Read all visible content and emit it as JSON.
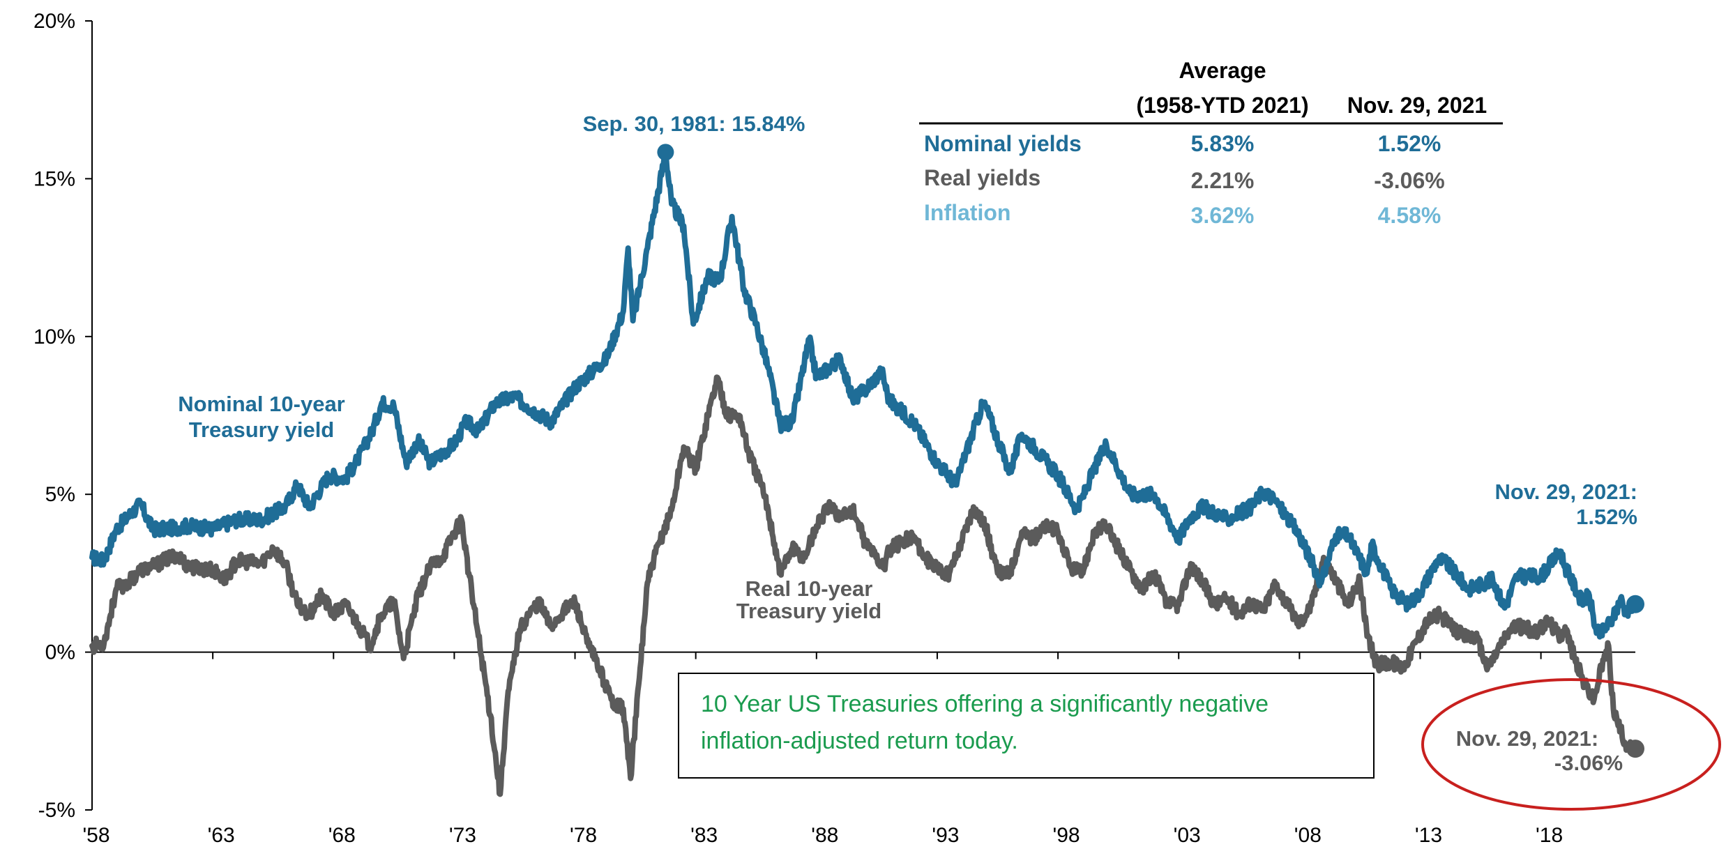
{
  "colors": {
    "nominal": "#1f6d97",
    "real": "#5b5b5b",
    "inflation": "#6fb7d6",
    "note_text": "#1a9b4e",
    "ellipse": "#c8201e",
    "axis": "#000000"
  },
  "chart_data": {
    "type": "line",
    "x_range": [
      "1958-01",
      "2021-11"
    ],
    "ylim": [
      -5,
      20
    ],
    "y_ticks": [
      {
        "value": 20,
        "label": "20%"
      },
      {
        "value": 15,
        "label": "15%"
      },
      {
        "value": 10,
        "label": "10%"
      },
      {
        "value": 5,
        "label": "5%"
      },
      {
        "value": 0,
        "label": "0%"
      },
      {
        "value": -5,
        "label": "-5%"
      }
    ],
    "x_ticks": [
      {
        "year": 1958,
        "label": "'58"
      },
      {
        "year": 1963,
        "label": "'63"
      },
      {
        "year": 1968,
        "label": "'68"
      },
      {
        "year": 1973,
        "label": "'73"
      },
      {
        "year": 1978,
        "label": "'78"
      },
      {
        "year": 1983,
        "label": "'83"
      },
      {
        "year": 1988,
        "label": "'88"
      },
      {
        "year": 1993,
        "label": "'93"
      },
      {
        "year": 1998,
        "label": "'98"
      },
      {
        "year": 2003,
        "label": "'03"
      },
      {
        "year": 2008,
        "label": "'08"
      },
      {
        "year": 2013,
        "label": "'13"
      },
      {
        "year": 2018,
        "label": "'18"
      }
    ],
    "series": [
      {
        "name": "Nominal 10-year Treasury yield",
        "label_lines": [
          "Nominal 10-year",
          "Treasury yield"
        ],
        "points": [
          [
            1958.0,
            3.0
          ],
          [
            1958.5,
            2.9
          ],
          [
            1959.0,
            3.9
          ],
          [
            1959.5,
            4.3
          ],
          [
            1960.0,
            4.7
          ],
          [
            1960.5,
            3.9
          ],
          [
            1961.0,
            3.9
          ],
          [
            1962.0,
            4.0
          ],
          [
            1963.0,
            3.9
          ],
          [
            1964.0,
            4.2
          ],
          [
            1965.0,
            4.2
          ],
          [
            1966.0,
            4.6
          ],
          [
            1966.5,
            5.3
          ],
          [
            1967.0,
            4.6
          ],
          [
            1967.8,
            5.6
          ],
          [
            1968.5,
            5.5
          ],
          [
            1969.0,
            6.1
          ],
          [
            1969.6,
            7.0
          ],
          [
            1970.0,
            7.9
          ],
          [
            1970.5,
            7.8
          ],
          [
            1971.0,
            6.0
          ],
          [
            1971.5,
            6.7
          ],
          [
            1972.0,
            6.0
          ],
          [
            1973.0,
            6.6
          ],
          [
            1973.5,
            7.3
          ],
          [
            1974.0,
            7.0
          ],
          [
            1974.7,
            7.9
          ],
          [
            1975.5,
            8.1
          ],
          [
            1976.0,
            7.8
          ],
          [
            1977.0,
            7.3
          ],
          [
            1978.0,
            8.4
          ],
          [
            1979.0,
            9.1
          ],
          [
            1979.3,
            9.3
          ],
          [
            1980.0,
            10.8
          ],
          [
            1980.2,
            12.8
          ],
          [
            1980.4,
            10.5
          ],
          [
            1981.0,
            12.8
          ],
          [
            1981.75,
            15.84
          ],
          [
            1982.0,
            14.2
          ],
          [
            1982.5,
            13.5
          ],
          [
            1982.9,
            10.4
          ],
          [
            1983.5,
            11.9
          ],
          [
            1984.0,
            11.8
          ],
          [
            1984.5,
            13.8
          ],
          [
            1985.0,
            11.5
          ],
          [
            1985.5,
            10.4
          ],
          [
            1986.0,
            9.0
          ],
          [
            1986.5,
            7.2
          ],
          [
            1987.0,
            7.3
          ],
          [
            1987.7,
            9.9
          ],
          [
            1988.0,
            8.7
          ],
          [
            1989.0,
            9.3
          ],
          [
            1989.5,
            8.0
          ],
          [
            1990.0,
            8.3
          ],
          [
            1990.7,
            8.9
          ],
          [
            1991.0,
            8.0
          ],
          [
            1992.0,
            7.3
          ],
          [
            1993.0,
            6.0
          ],
          [
            1993.8,
            5.3
          ],
          [
            1994.0,
            5.9
          ],
          [
            1994.9,
            7.9
          ],
          [
            1995.0,
            7.8
          ],
          [
            1996.0,
            5.7
          ],
          [
            1996.5,
            6.9
          ],
          [
            1997.0,
            6.5
          ],
          [
            1998.0,
            5.6
          ],
          [
            1998.8,
            4.5
          ],
          [
            1999.5,
            5.8
          ],
          [
            2000.0,
            6.6
          ],
          [
            2001.0,
            5.0
          ],
          [
            2002.0,
            5.0
          ],
          [
            2003.0,
            3.6
          ],
          [
            2003.5,
            4.3
          ],
          [
            2004.0,
            4.6
          ],
          [
            2005.0,
            4.2
          ],
          [
            2006.0,
            4.6
          ],
          [
            2006.5,
            5.1
          ],
          [
            2007.0,
            4.8
          ],
          [
            2008.0,
            3.7
          ],
          [
            2008.9,
            2.2
          ],
          [
            2009.5,
            3.7
          ],
          [
            2010.0,
            3.7
          ],
          [
            2010.8,
            2.5
          ],
          [
            2011.0,
            3.4
          ],
          [
            2011.8,
            2.0
          ],
          [
            2012.5,
            1.5
          ],
          [
            2013.0,
            1.9
          ],
          [
            2013.7,
            2.9
          ],
          [
            2014.0,
            2.9
          ],
          [
            2015.0,
            2.0
          ],
          [
            2016.0,
            2.3
          ],
          [
            2016.5,
            1.4
          ],
          [
            2017.0,
            2.4
          ],
          [
            2018.0,
            2.4
          ],
          [
            2018.8,
            3.2
          ],
          [
            2019.0,
            2.7
          ],
          [
            2019.7,
            1.6
          ],
          [
            2020.0,
            1.8
          ],
          [
            2020.3,
            0.6
          ],
          [
            2020.5,
            0.6
          ],
          [
            2021.0,
            1.1
          ],
          [
            2021.3,
            1.7
          ],
          [
            2021.5,
            1.3
          ],
          [
            2021.91,
            1.52
          ]
        ]
      },
      {
        "name": "Real 10-year Treasury yield",
        "label_lines": [
          "Real 10-year",
          "Treasury yield"
        ],
        "points": [
          [
            1958.0,
            0.2
          ],
          [
            1958.5,
            0.3
          ],
          [
            1959.0,
            2.0
          ],
          [
            1959.5,
            2.2
          ],
          [
            1960.0,
            2.6
          ],
          [
            1960.5,
            2.7
          ],
          [
            1961.0,
            2.9
          ],
          [
            1961.5,
            3.1
          ],
          [
            1962.0,
            2.7
          ],
          [
            1963.0,
            2.6
          ],
          [
            1963.5,
            2.3
          ],
          [
            1964.0,
            2.9
          ],
          [
            1965.0,
            2.8
          ],
          [
            1965.5,
            3.3
          ],
          [
            1966.0,
            2.8
          ],
          [
            1966.5,
            1.5
          ],
          [
            1967.0,
            1.2
          ],
          [
            1967.5,
            1.8
          ],
          [
            1968.0,
            1.2
          ],
          [
            1968.5,
            1.5
          ],
          [
            1969.0,
            0.9
          ],
          [
            1969.5,
            0.2
          ],
          [
            1970.0,
            1.2
          ],
          [
            1970.5,
            1.6
          ],
          [
            1970.9,
            -0.2
          ],
          [
            1971.5,
            1.8
          ],
          [
            1972.0,
            2.7
          ],
          [
            1972.5,
            3.0
          ],
          [
            1973.0,
            3.8
          ],
          [
            1973.3,
            4.2
          ],
          [
            1973.6,
            2.5
          ],
          [
            1974.0,
            0.5
          ],
          [
            1974.5,
            -2.0
          ],
          [
            1974.9,
            -4.5
          ],
          [
            1975.2,
            -1.5
          ],
          [
            1975.7,
            0.7
          ],
          [
            1976.0,
            1.1
          ],
          [
            1976.5,
            1.6
          ],
          [
            1977.0,
            0.8
          ],
          [
            1977.5,
            1.3
          ],
          [
            1978.0,
            1.6
          ],
          [
            1978.5,
            0.3
          ],
          [
            1979.0,
            -0.5
          ],
          [
            1979.5,
            -1.5
          ],
          [
            1980.0,
            -1.8
          ],
          [
            1980.3,
            -4.0
          ],
          [
            1980.7,
            -0.5
          ],
          [
            1981.0,
            2.2
          ],
          [
            1981.5,
            3.5
          ],
          [
            1982.0,
            4.5
          ],
          [
            1982.5,
            6.5
          ],
          [
            1983.0,
            5.8
          ],
          [
            1983.5,
            7.5
          ],
          [
            1983.9,
            8.7
          ],
          [
            1984.3,
            7.5
          ],
          [
            1984.8,
            7.5
          ],
          [
            1985.2,
            6.3
          ],
          [
            1985.7,
            5.3
          ],
          [
            1986.0,
            4.5
          ],
          [
            1986.5,
            2.5
          ],
          [
            1987.0,
            3.3
          ],
          [
            1987.5,
            3.0
          ],
          [
            1988.0,
            4.0
          ],
          [
            1988.5,
            4.6
          ],
          [
            1989.0,
            4.3
          ],
          [
            1989.5,
            4.5
          ],
          [
            1990.0,
            3.5
          ],
          [
            1990.8,
            2.7
          ],
          [
            1991.0,
            3.2
          ],
          [
            1991.5,
            3.5
          ],
          [
            1992.0,
            3.7
          ],
          [
            1992.5,
            3.0
          ],
          [
            1993.0,
            2.6
          ],
          [
            1993.5,
            2.5
          ],
          [
            1994.0,
            3.5
          ],
          [
            1994.5,
            4.6
          ],
          [
            1995.0,
            4.0
          ],
          [
            1995.5,
            2.5
          ],
          [
            1996.0,
            2.5
          ],
          [
            1996.5,
            3.8
          ],
          [
            1997.0,
            3.6
          ],
          [
            1997.5,
            4.0
          ],
          [
            1998.0,
            3.8
          ],
          [
            1998.5,
            2.7
          ],
          [
            1999.0,
            2.5
          ],
          [
            1999.5,
            3.8
          ],
          [
            2000.0,
            4.0
          ],
          [
            2000.5,
            3.3
          ],
          [
            2001.0,
            2.6
          ],
          [
            2001.5,
            2.0
          ],
          [
            2002.0,
            2.5
          ],
          [
            2002.5,
            1.5
          ],
          [
            2003.0,
            1.5
          ],
          [
            2003.5,
            2.8
          ],
          [
            2004.0,
            2.2
          ],
          [
            2004.5,
            1.5
          ],
          [
            2005.0,
            1.7
          ],
          [
            2005.5,
            1.2
          ],
          [
            2006.0,
            1.6
          ],
          [
            2006.5,
            1.3
          ],
          [
            2007.0,
            2.2
          ],
          [
            2007.5,
            1.5
          ],
          [
            2008.0,
            0.9
          ],
          [
            2008.5,
            1.5
          ],
          [
            2009.0,
            3.0
          ],
          [
            2009.5,
            2.3
          ],
          [
            2010.0,
            1.5
          ],
          [
            2010.5,
            2.3
          ],
          [
            2010.8,
            0.5
          ],
          [
            2011.2,
            -0.4
          ],
          [
            2011.8,
            -0.3
          ],
          [
            2012.3,
            -0.5
          ],
          [
            2012.8,
            0.3
          ],
          [
            2013.3,
            1.0
          ],
          [
            2013.8,
            1.2
          ],
          [
            2014.3,
            0.8
          ],
          [
            2014.8,
            0.5
          ],
          [
            2015.3,
            0.5
          ],
          [
            2015.8,
            -0.5
          ],
          [
            2016.3,
            0.2
          ],
          [
            2016.8,
            0.8
          ],
          [
            2017.3,
            0.8
          ],
          [
            2017.8,
            0.6
          ],
          [
            2018.3,
            1.0
          ],
          [
            2018.8,
            0.5
          ],
          [
            2019.0,
            0.8
          ],
          [
            2019.4,
            -0.2
          ],
          [
            2019.8,
            -1.0
          ],
          [
            2020.2,
            -1.5
          ],
          [
            2020.5,
            -0.5
          ],
          [
            2020.8,
            0.2
          ],
          [
            2021.0,
            -1.8
          ],
          [
            2021.3,
            -2.5
          ],
          [
            2021.6,
            -3.0
          ],
          [
            2021.91,
            -3.06
          ]
        ]
      }
    ],
    "annotations": {
      "peak": {
        "label": "Sep. 30, 1981: 15.84%",
        "x": 1981.75,
        "y": 15.84
      },
      "nominal_end": {
        "label_lines": [
          "Nov. 29, 2021:",
          "1.52%"
        ],
        "x": 2021.91,
        "y": 1.52
      },
      "real_end": {
        "label_lines": [
          "Nov. 29, 2021:",
          "-3.06%"
        ],
        "x": 2021.91,
        "y": -3.06
      }
    },
    "table": {
      "headers": {
        "col1_line1": "Average",
        "col1_line2": "(1958-YTD 2021)",
        "col2": "Nov. 29, 2021"
      },
      "rows": [
        {
          "label": "Nominal yields",
          "average": "5.83%",
          "current": "1.52%",
          "color_key": "nominal"
        },
        {
          "label": "Real yields",
          "average": "2.21%",
          "current": "-3.06%",
          "color_key": "real"
        },
        {
          "label": "Inflation",
          "average": "3.62%",
          "current": "4.58%",
          "color_key": "inflation"
        }
      ]
    },
    "note_lines": [
      "10 Year US Treasuries offering a significantly negative",
      "inflation-adjusted return today."
    ]
  }
}
